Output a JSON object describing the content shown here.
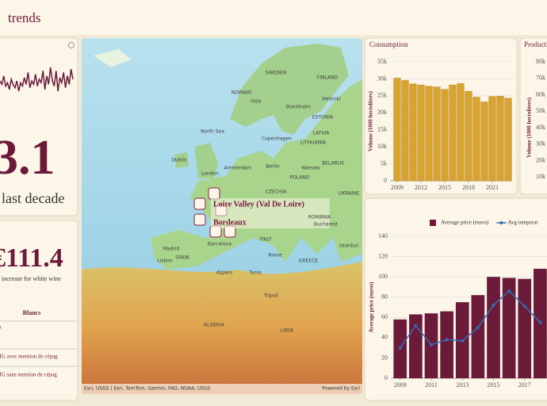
{
  "header": {
    "title": "trends"
  },
  "kpi": {
    "value": "3.1",
    "caption": "last decade"
  },
  "kpi2": {
    "value": "€111.4",
    "caption": "increase for white wine"
  },
  "table": {
    "header": "Blancs",
    "rows": [
      "o",
      "s IG avec mention de cépag",
      "s IG sans mention de cépag"
    ]
  },
  "map": {
    "labels": [
      "NORWAY",
      "SWEDEN",
      "FINLAND",
      "Oslo",
      "Stockholm",
      "Helsinki",
      "ESTONIA",
      "LATVIA",
      "LITHUANIA",
      "Copenhagen",
      "North Sea",
      "Dublin",
      "London",
      "Amsterdam",
      "Berlin",
      "Warsaw",
      "POLAND",
      "BELARUS",
      "UKRAINE",
      "CZECHIA",
      "ROMANIA",
      "Bucharest",
      "ITALY",
      "Rome",
      "SPAIN",
      "Madrid",
      "Lisbon",
      "Barcelona",
      "GREECE",
      "Istanbul",
      "Algiers",
      "Tunis",
      "Tripoli",
      "ALGERIA",
      "LIBYA"
    ],
    "markers": [
      "Loire Valley (Val De Loire)",
      "Bordeaux"
    ],
    "attribution": "Esri, USGS | Esri, TomTom, Garmin, FAO, NOAA, USGS",
    "powered": "Powered by Esri"
  },
  "chart_data": [
    {
      "type": "line",
      "color": "#6b1a3a",
      "values": [
        52,
        50,
        55,
        49,
        51,
        47,
        53,
        50,
        48,
        52,
        46,
        51,
        49,
        54,
        50,
        57,
        48,
        52,
        50,
        56,
        49,
        53,
        51,
        58,
        47,
        55,
        50,
        60,
        52,
        49,
        58,
        46,
        54,
        51,
        57,
        48,
        55,
        50,
        59,
        53
      ]
    },
    {
      "type": "bar",
      "title": "Consumption",
      "ylabel": "Volume (1000 hectoliters)",
      "x": [
        2009,
        2010,
        2011,
        2012,
        2013,
        2014,
        2015,
        2016,
        2017,
        2018,
        2019,
        2020,
        2021,
        2022,
        2023
      ],
      "series": [
        {
          "name": "Consumption",
          "color": "#d9a330",
          "values": [
            30200,
            29500,
            28500,
            28200,
            27800,
            27600,
            26900,
            28200,
            28600,
            26300,
            24600,
            23200,
            24800,
            24900,
            24300
          ]
        }
      ],
      "xlim": [
        2008.1,
        2023.5
      ],
      "xticks": [
        2009,
        2012,
        2015,
        2018,
        2021
      ],
      "ylim": [
        0,
        35000
      ],
      "yticks": [
        {
          "value": 0,
          "label": "0"
        },
        {
          "value": 5000,
          "label": "5k"
        },
        {
          "value": 10000,
          "label": "10k"
        },
        {
          "value": 15000,
          "label": "15k"
        },
        {
          "value": 20000,
          "label": "20k"
        },
        {
          "value": 25000,
          "label": "25k"
        },
        {
          "value": 30000,
          "label": "30k"
        },
        {
          "value": 35000,
          "label": "35k"
        }
      ],
      "grid": true
    },
    {
      "type": "bar",
      "title": "Producti",
      "ylabel": "Volume (1000 hectoliters)",
      "x": [],
      "series": [],
      "xlim": [
        2008,
        2024
      ],
      "xticks": [],
      "ylim": [
        0,
        80000
      ],
      "yticks": [
        {
          "value": 10000,
          "label": "10k"
        },
        {
          "value": 20000,
          "label": "20k"
        },
        {
          "value": 30000,
          "label": "30k"
        },
        {
          "value": 40000,
          "label": "40k"
        },
        {
          "value": 50000,
          "label": "50k"
        },
        {
          "value": 60000,
          "label": "60k"
        },
        {
          "value": 70000,
          "label": "70k"
        },
        {
          "value": 80000,
          "label": "80k"
        }
      ],
      "grid": true
    },
    {
      "type": "bar",
      "ylabel": "Average price (euros)",
      "x": [
        2009,
        2010,
        2011,
        2012,
        2013,
        2014,
        2015,
        2016,
        2017,
        2018
      ],
      "series": [
        {
          "name": "Average price (euros)",
          "color": "#6b1a3a",
          "values": [
            58,
            63,
            64,
            66,
            75,
            82,
            100,
            99,
            98,
            108
          ]
        },
        {
          "name": "Avg temperat",
          "type": "line",
          "color": "#2f6fb5",
          "values": [
            30,
            52,
            33,
            38,
            37,
            50,
            72,
            86,
            71,
            55
          ]
        }
      ],
      "xlim": [
        2008.4,
        2019
      ],
      "xticks": [
        2009,
        2011,
        2013,
        2015,
        2017
      ],
      "ylim": [
        0,
        140
      ],
      "yticks": [
        0,
        20,
        40,
        60,
        80,
        100,
        120,
        140
      ],
      "grid": true
    }
  ]
}
